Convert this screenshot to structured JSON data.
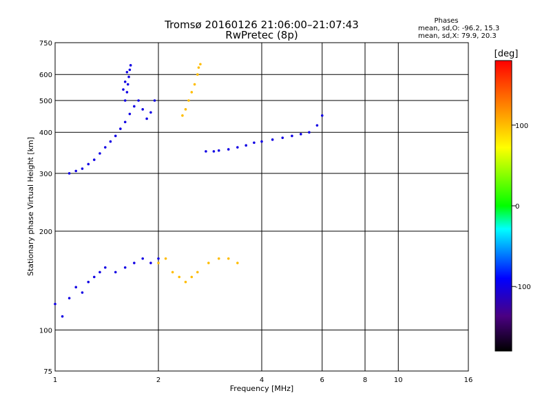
{
  "header": {
    "title": "Tromsø 20160126 21:06:00–21:07:43",
    "subtitle": "RwPretec (8p)"
  },
  "phases_box": {
    "heading": "Phases",
    "line_o": "mean, sd,O: -96.2, 15.3",
    "line_x": "mean, sd,X: 79.9, 20.3"
  },
  "colorbar": {
    "unit": "[deg]",
    "ticks": [
      "100",
      "0",
      "-100"
    ],
    "tick_values": [
      100,
      0,
      -100
    ],
    "range": [
      -180,
      180
    ]
  },
  "chart_data": {
    "type": "scatter",
    "title": "Tromsø 20160126 21:06:00–21:07:43",
    "subtitle": "RwPretec (8p)",
    "xlabel": "Frequency [MHz]",
    "ylabel": "Stationary phase Virtual Height [km]",
    "x_scale": "log",
    "y_scale": "log",
    "xlim": [
      1,
      16
    ],
    "ylim": [
      75,
      750
    ],
    "x_ticks": [
      1,
      2,
      4,
      6,
      8,
      10,
      16
    ],
    "x_tick_labels": [
      "1",
      "2",
      "4",
      "6",
      "8",
      "10",
      "16"
    ],
    "y_ticks": [
      75,
      100,
      200,
      300,
      400,
      500,
      600,
      750
    ],
    "y_tick_labels": [
      "75",
      "100",
      "200",
      "300",
      "400",
      "500",
      "600",
      "750"
    ],
    "grid": true,
    "color_encodes": "phase [deg]",
    "clusters": [
      {
        "name": "F O-mode trace lower",
        "phase": -100,
        "points": [
          [
            1.1,
            300
          ],
          [
            1.15,
            305
          ],
          [
            1.2,
            310
          ],
          [
            1.25,
            320
          ],
          [
            1.3,
            330
          ],
          [
            1.35,
            345
          ],
          [
            1.4,
            360
          ],
          [
            1.45,
            375
          ],
          [
            1.5,
            390
          ],
          [
            1.55,
            410
          ],
          [
            1.6,
            430
          ],
          [
            1.65,
            455
          ],
          [
            1.7,
            480
          ],
          [
            1.75,
            500
          ],
          [
            1.8,
            470
          ],
          [
            1.85,
            440
          ],
          [
            1.9,
            460
          ],
          [
            1.95,
            500
          ]
        ]
      },
      {
        "name": "F O-mode trace upper",
        "phase": -100,
        "points": [
          [
            1.6,
            500
          ],
          [
            1.62,
            530
          ],
          [
            1.63,
            560
          ],
          [
            1.64,
            590
          ],
          [
            1.65,
            620
          ],
          [
            1.66,
            640
          ],
          [
            1.62,
            610
          ],
          [
            1.6,
            570
          ],
          [
            1.58,
            540
          ]
        ]
      },
      {
        "name": "F X-mode trace",
        "phase": 100,
        "points": [
          [
            2.35,
            450
          ],
          [
            2.4,
            470
          ],
          [
            2.45,
            500
          ],
          [
            2.5,
            530
          ],
          [
            2.55,
            560
          ],
          [
            2.6,
            600
          ],
          [
            2.62,
            630
          ],
          [
            2.65,
            645
          ]
        ]
      },
      {
        "name": "F2 O-mode trace",
        "phase": -100,
        "points": [
          [
            2.75,
            350
          ],
          [
            2.9,
            350
          ],
          [
            3.0,
            352
          ],
          [
            3.2,
            355
          ],
          [
            3.4,
            360
          ],
          [
            3.6,
            365
          ],
          [
            3.8,
            372
          ],
          [
            4.0,
            375
          ],
          [
            4.3,
            380
          ],
          [
            4.6,
            385
          ],
          [
            4.9,
            390
          ],
          [
            5.2,
            395
          ],
          [
            5.5,
            400
          ],
          [
            5.8,
            420
          ],
          [
            6.0,
            450
          ]
        ]
      },
      {
        "name": "E O-mode region",
        "phase": -100,
        "points": [
          [
            1.0,
            120
          ],
          [
            1.05,
            110
          ],
          [
            1.1,
            125
          ],
          [
            1.15,
            135
          ],
          [
            1.2,
            130
          ],
          [
            1.25,
            140
          ],
          [
            1.3,
            145
          ],
          [
            1.35,
            150
          ],
          [
            1.4,
            155
          ],
          [
            1.5,
            150
          ],
          [
            1.6,
            155
          ],
          [
            1.7,
            160
          ],
          [
            1.8,
            165
          ],
          [
            1.9,
            160
          ],
          [
            2.0,
            165
          ]
        ]
      },
      {
        "name": "E X-mode region",
        "phase": 100,
        "points": [
          [
            2.0,
            160
          ],
          [
            2.1,
            165
          ],
          [
            2.2,
            150
          ],
          [
            2.3,
            145
          ],
          [
            2.4,
            140
          ],
          [
            2.5,
            145
          ],
          [
            2.6,
            150
          ],
          [
            2.8,
            160
          ],
          [
            3.0,
            165
          ],
          [
            3.2,
            165
          ],
          [
            3.4,
            160
          ]
        ]
      }
    ]
  }
}
